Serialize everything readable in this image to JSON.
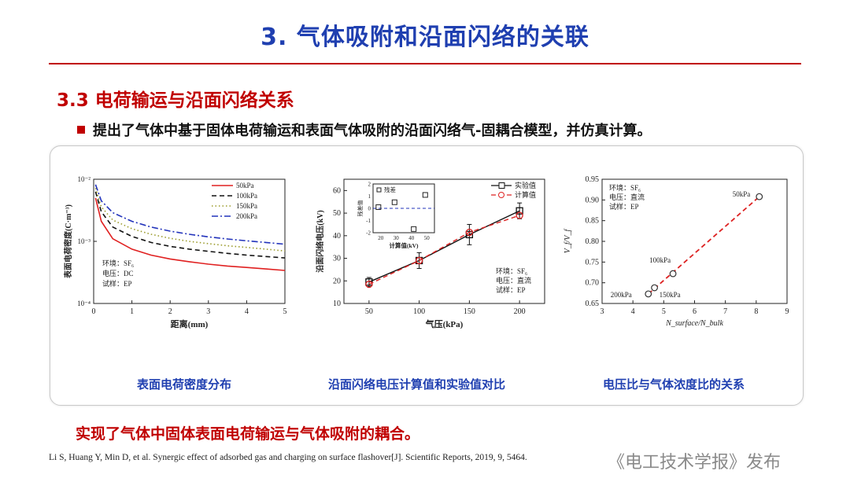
{
  "title": "3. 气体吸附和沿面闪络的关联",
  "section": "3.3 电荷输运与沿面闪络关系",
  "bullet": "提出了气体中基于固体电荷输运和表面气体吸附的沿面闪络气-固耦合模型，并仿真计算。",
  "conclusion": "实现了气体中固体表面电荷输运与气体吸附的耦合。",
  "reference": "Li S, Huang Y, Min D, et al. Synergic effect of adsorbed gas and charging on surface flashover[J]. Scientific Reports, 2019, 9, 5464.",
  "watermark": "《电工技术学报》发布",
  "colors": {
    "title": "#1f3fb0",
    "accent": "#c00000",
    "caption": "#1f3fb0"
  },
  "chart_data": [
    {
      "type": "line",
      "caption": "表面电荷密度分布",
      "xlabel": "距离(mm)",
      "ylabel": "表面电荷密度(C·m⁻³)",
      "xlim": [
        0,
        5
      ],
      "ylim": [
        0.0001,
        0.01
      ],
      "yscale": "log",
      "xticks": [
        "0",
        "1",
        "2",
        "3",
        "4",
        "5"
      ],
      "yticks": [
        "10⁻²",
        "10⁻³",
        "10⁻⁴"
      ],
      "legend_position": "top-right",
      "annotation": [
        "环境：SF₆",
        "电压：DC",
        "试样：EP"
      ],
      "x": [
        0.05,
        0.2,
        0.5,
        1,
        1.5,
        2,
        2.5,
        3,
        3.5,
        4,
        4.5,
        5
      ],
      "series": [
        {
          "name": "50kPa",
          "color": "#e02020",
          "dash": "",
          "values": [
            0.005,
            0.0021,
            0.0011,
            0.00075,
            0.0006,
            0.00052,
            0.00047,
            0.00043,
            0.0004,
            0.00038,
            0.00036,
            0.00034
          ]
        },
        {
          "name": "100kPa",
          "color": "#111111",
          "dash": "6 4",
          "values": [
            0.0063,
            0.003,
            0.0017,
            0.0012,
            0.00096,
            0.00083,
            0.00075,
            0.00069,
            0.00064,
            0.0006,
            0.00057,
            0.00054
          ]
        },
        {
          "name": "150kPa",
          "color": "#9a9a2a",
          "dash": "1.5 3",
          "values": [
            0.0072,
            0.0036,
            0.0022,
            0.0016,
            0.0013,
            0.00112,
            0.001,
            0.00092,
            0.00085,
            0.0008,
            0.00075,
            0.0007
          ]
        },
        {
          "name": "200kPa",
          "color": "#2233bb",
          "dash": "8 3 2 3",
          "values": [
            0.0082,
            0.0045,
            0.0029,
            0.0021,
            0.0017,
            0.00146,
            0.0013,
            0.00118,
            0.00109,
            0.00102,
            0.00096,
            0.0009
          ]
        }
      ]
    },
    {
      "type": "line",
      "caption": "沿面闪络电压计算值和实验值对比",
      "xlabel": "气压(kPa)",
      "ylabel": "沿面闪络电压(kV)",
      "xlim": [
        25,
        225
      ],
      "ylim": [
        10,
        65
      ],
      "xticks": [
        50,
        100,
        150,
        200
      ],
      "yticks": [
        10,
        20,
        30,
        40,
        50,
        60
      ],
      "legend_position": "top-right",
      "annotation": [
        "环境：SF₆",
        "电压：直流",
        "试样：EP"
      ],
      "x": [
        50,
        100,
        150,
        200
      ],
      "series": [
        {
          "name": "实验值",
          "color": "#111111",
          "marker": "square",
          "dash": "",
          "values": [
            19.5,
            29.0,
            40.5,
            51.0
          ],
          "errors": [
            2.0,
            3.5,
            4.5,
            3.5
          ]
        },
        {
          "name": "计算值",
          "color": "#dd2222",
          "marker": "circle",
          "dash": "6 4",
          "values": [
            18.5,
            29.0,
            41.5,
            49.0
          ]
        }
      ],
      "inset": {
        "title": "残差",
        "xlabel": "计算值(kV)",
        "ylabel": "残差值",
        "xlim": [
          15,
          55
        ],
        "ylim": [
          -2,
          2
        ],
        "xticks": [
          20,
          30,
          40,
          50
        ],
        "yticks": [
          -2,
          -1,
          0,
          1,
          2
        ],
        "points": [
          [
            18.5,
            0.1
          ],
          [
            29,
            0.5
          ],
          [
            41.5,
            -1.7
          ],
          [
            49,
            1.1
          ]
        ]
      }
    },
    {
      "type": "scatter",
      "caption": "电压比与气体浓度比的关系",
      "xlabel": "N_surface/N_bulk",
      "ylabel": "V_f/V_f",
      "xlim": [
        3,
        9
      ],
      "ylim": [
        0.65,
        0.95
      ],
      "xticks": [
        3,
        4,
        5,
        6,
        7,
        8,
        9
      ],
      "yticks": [
        0.65,
        0.7,
        0.75,
        0.8,
        0.85,
        0.9,
        0.95
      ],
      "annotation": [
        "环境：SF₆",
        "电压：直流",
        "试样：EP"
      ],
      "points": [
        {
          "label": "200kPa",
          "x": 4.5,
          "y": 0.673
        },
        {
          "label": "150kPa",
          "x": 4.7,
          "y": 0.688
        },
        {
          "label": "100kPa",
          "x": 5.3,
          "y": 0.722
        },
        {
          "label": "50kPa",
          "x": 8.1,
          "y": 0.908
        }
      ]
    }
  ]
}
